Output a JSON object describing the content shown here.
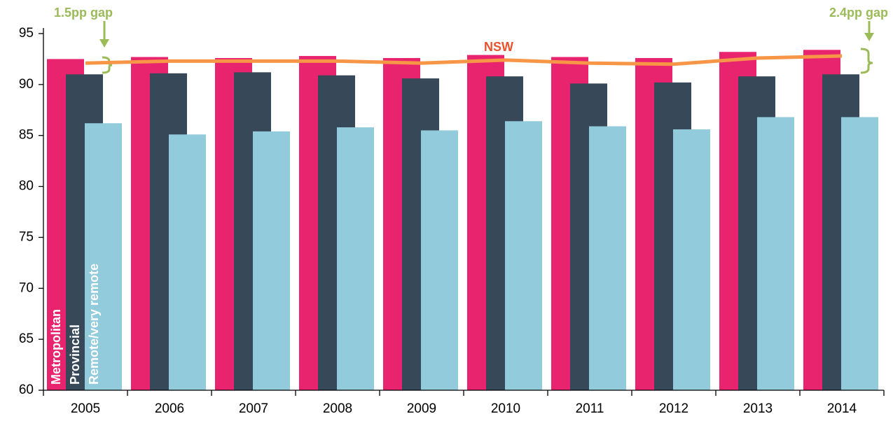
{
  "chart_data": {
    "type": "bar",
    "categories": [
      "2005",
      "2006",
      "2007",
      "2008",
      "2009",
      "2010",
      "2011",
      "2012",
      "2013",
      "2014"
    ],
    "series": [
      {
        "name": "Metropolitan",
        "color": "#e8246f",
        "values": [
          92.5,
          92.7,
          92.6,
          92.8,
          92.6,
          92.9,
          92.7,
          92.6,
          93.2,
          93.4
        ]
      },
      {
        "name": "Provincial",
        "color": "#374858",
        "values": [
          91.0,
          91.1,
          91.2,
          90.9,
          90.6,
          90.8,
          90.1,
          90.2,
          90.8,
          91.0
        ]
      },
      {
        "name": "Remote/very remote",
        "color": "#92cbdc",
        "values": [
          86.2,
          85.1,
          85.4,
          85.8,
          85.5,
          86.4,
          85.9,
          85.6,
          86.8,
          86.8
        ]
      },
      {
        "name": "NSW",
        "type": "line",
        "color": "#f79646",
        "values": [
          92.1,
          92.3,
          92.3,
          92.3,
          92.1,
          92.4,
          92.1,
          92.0,
          92.6,
          92.8
        ]
      }
    ],
    "annotations": [
      "1.5pp gap",
      "2.4pp gap"
    ],
    "ylim": [
      60,
      95
    ],
    "yticks": [
      60,
      65,
      70,
      75,
      80,
      85,
      90,
      95
    ],
    "grid": false
  }
}
